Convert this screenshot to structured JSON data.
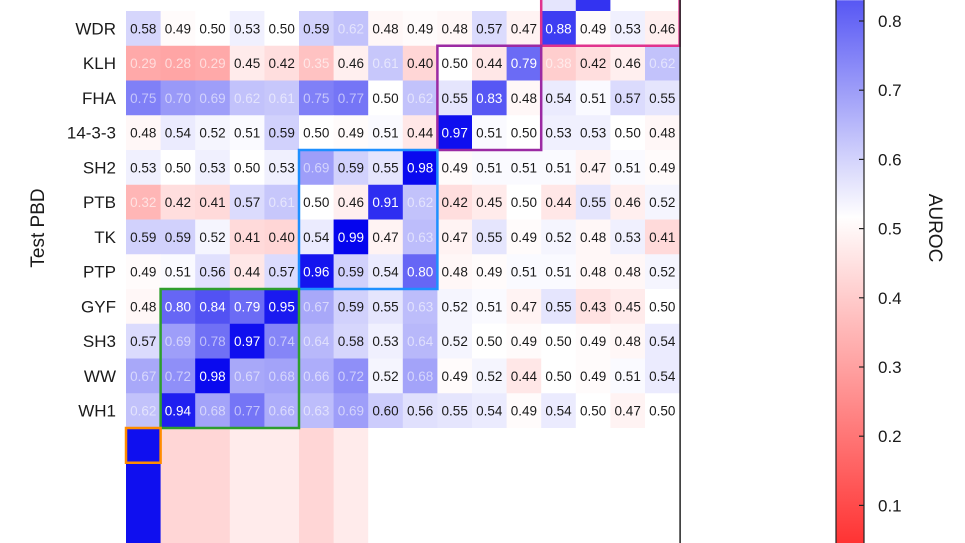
{
  "chart_data": {
    "type": "heatmap",
    "ylabel": "Test PBD",
    "colorbar_label": "AUROC",
    "colorbar_ticks": [
      0.1,
      0.2,
      0.3,
      0.4,
      0.5,
      0.6,
      0.7,
      0.8
    ],
    "color_range": [
      0.0,
      1.0
    ],
    "colors": {
      "low": "#ff3333",
      "mid": "#ffffff",
      "high": "#0000ee"
    },
    "rows": [
      "WDR",
      "KLH",
      "FHA",
      "14-3-3",
      "SH2",
      "PTB",
      "TK",
      "PTP",
      "GYF",
      "SH3",
      "WW",
      "WH1"
    ],
    "values": [
      [
        0.58,
        0.49,
        0.5,
        0.53,
        0.5,
        0.59,
        0.62,
        0.48,
        0.49,
        0.48,
        0.57,
        0.47,
        0.88,
        0.49,
        0.53,
        0.46
      ],
      [
        0.29,
        0.28,
        0.29,
        0.45,
        0.42,
        0.35,
        0.46,
        0.61,
        0.4,
        0.5,
        0.44,
        0.79,
        0.38,
        0.42,
        0.46,
        0.62
      ],
      [
        0.75,
        0.7,
        0.69,
        0.62,
        0.61,
        0.75,
        0.77,
        0.5,
        0.62,
        0.55,
        0.83,
        0.48,
        0.54,
        0.51,
        0.57,
        0.55
      ],
      [
        0.48,
        0.54,
        0.52,
        0.51,
        0.59,
        0.5,
        0.49,
        0.51,
        0.44,
        0.97,
        0.51,
        0.5,
        0.53,
        0.53,
        0.5,
        0.48
      ],
      [
        0.53,
        0.5,
        0.53,
        0.5,
        0.53,
        0.69,
        0.59,
        0.55,
        0.98,
        0.49,
        0.51,
        0.51,
        0.51,
        0.47,
        0.51,
        0.49
      ],
      [
        0.32,
        0.42,
        0.41,
        0.57,
        0.61,
        0.5,
        0.46,
        0.91,
        0.62,
        0.42,
        0.45,
        0.5,
        0.44,
        0.55,
        0.46,
        0.52
      ],
      [
        0.59,
        0.59,
        0.52,
        0.41,
        0.4,
        0.54,
        0.99,
        0.47,
        0.63,
        0.47,
        0.55,
        0.49,
        0.52,
        0.48,
        0.53,
        0.41
      ],
      [
        0.49,
        0.51,
        0.56,
        0.44,
        0.57,
        0.96,
        0.59,
        0.54,
        0.8,
        0.48,
        0.49,
        0.51,
        0.51,
        0.48,
        0.48,
        0.52
      ],
      [
        0.48,
        0.8,
        0.84,
        0.79,
        0.95,
        0.67,
        0.59,
        0.55,
        0.63,
        0.52,
        0.51,
        0.47,
        0.55,
        0.43,
        0.45,
        0.5
      ],
      [
        0.57,
        0.69,
        0.78,
        0.97,
        0.74,
        0.64,
        0.58,
        0.53,
        0.64,
        0.52,
        0.5,
        0.49,
        0.5,
        0.49,
        0.48,
        0.54
      ],
      [
        0.67,
        0.72,
        0.98,
        0.67,
        0.68,
        0.66,
        0.72,
        0.52,
        0.68,
        0.49,
        0.52,
        0.44,
        0.5,
        0.49,
        0.51,
        0.54
      ],
      [
        0.62,
        0.94,
        0.68,
        0.77,
        0.66,
        0.63,
        0.69,
        0.6,
        0.56,
        0.55,
        0.54,
        0.49,
        0.54,
        0.5,
        0.47,
        0.5
      ]
    ],
    "highlight_boxes": [
      {
        "color": "#e0338e",
        "rows": [
          0,
          0
        ],
        "cols": [
          12,
          15
        ]
      },
      {
        "color": "#9b2aa3",
        "rows": [
          1,
          3
        ],
        "cols": [
          9,
          11
        ]
      },
      {
        "color": "#1e90ff",
        "rows": [
          4,
          7
        ],
        "cols": [
          5,
          8
        ]
      },
      {
        "color": "#2e9e2e",
        "rows": [
          8,
          11
        ],
        "cols": [
          1,
          4
        ]
      },
      {
        "color": "#ff8c00",
        "rows": [
          12,
          12
        ],
        "cols": [
          0,
          0
        ]
      }
    ]
  }
}
